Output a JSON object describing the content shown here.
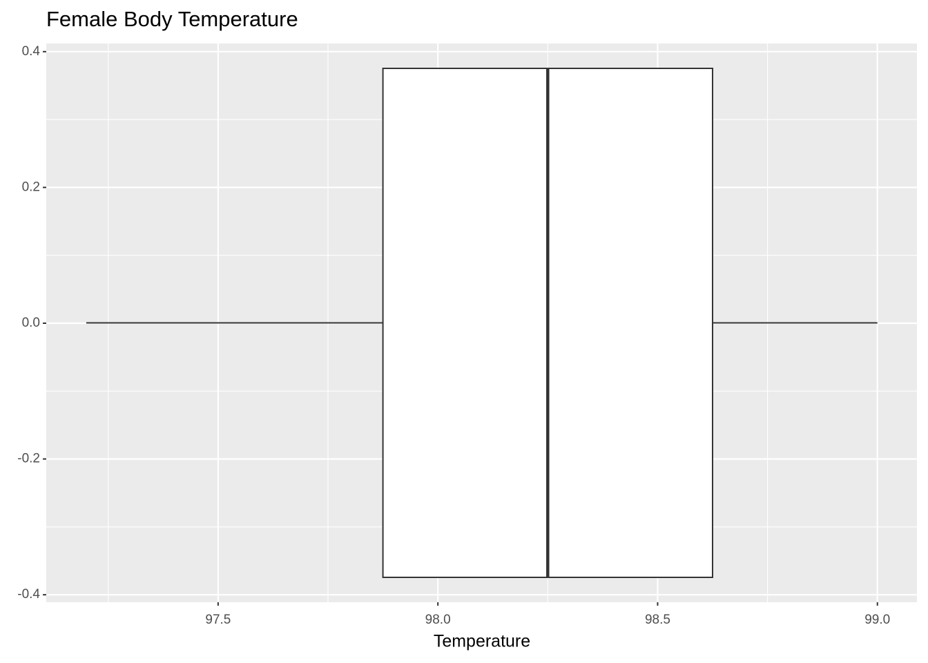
{
  "chart_data": {
    "type": "boxplot",
    "title": "Female Body Temperature",
    "x_label": "Temperature",
    "box": {
      "min": 97.2,
      "q1": 97.875,
      "median": 98.25,
      "q3": 98.625,
      "max": 99.0
    },
    "fill": "#ffffff",
    "line_color": "#333333",
    "xlim": [
      97.109,
      99.09
    ],
    "xticks": [
      97.5,
      {
        "value": 98.0,
        "label": "98.0"
      },
      98.5,
      {
        "value": 99.0,
        "label": "99.0"
      }
    ],
    "x_minor_ticks": [
      97.25,
      97.75,
      98.25,
      98.75
    ],
    "ylim": [
      -0.411,
      0.412
    ],
    "yticks": [
      0.4,
      0.2,
      {
        "value": 0,
        "label": "0.0"
      },
      -0.2,
      -0.4
    ],
    "y_minor_ticks": [
      0.3,
      0.1,
      -0.1,
      -0.3
    ],
    "grid": true
  }
}
